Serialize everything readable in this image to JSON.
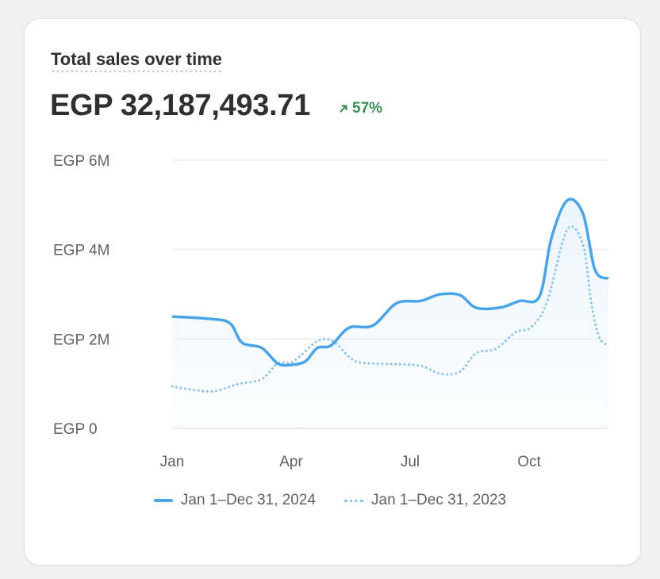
{
  "card": {
    "title": "Total sales over time",
    "total": "EGP 32,187,493.71",
    "change": "57%",
    "change_icon": "arrow-up-right-icon"
  },
  "chart_data": {
    "type": "line",
    "title": "",
    "xlabel": "",
    "ylabel": "",
    "ylim": [
      0,
      6000000
    ],
    "xlim": [
      0,
      11
    ],
    "y_ticks": [
      {
        "value": 0,
        "label": "EGP 0"
      },
      {
        "value": 2000000,
        "label": "EGP 2M"
      },
      {
        "value": 4000000,
        "label": "EGP 4M"
      },
      {
        "value": 6000000,
        "label": "EGP 6M"
      }
    ],
    "x_ticks": [
      {
        "value": 0,
        "label": "Jan"
      },
      {
        "value": 3,
        "label": "Apr"
      },
      {
        "value": 6,
        "label": "Jul"
      },
      {
        "value": 9,
        "label": "Oct"
      }
    ],
    "grid": true,
    "legend_position": "bottom",
    "colors": {
      "current": "#4aa5e8",
      "previous": "#8cc3ea",
      "fill": "#eaf4fc"
    },
    "series": [
      {
        "name": "Jan 1–Dec 31, 2024",
        "style": "solid",
        "points": [
          [
            0,
            2.5
          ],
          [
            0.96,
            2.45
          ],
          [
            1.46,
            2.35
          ],
          [
            1.76,
            1.92
          ],
          [
            2.26,
            1.8
          ],
          [
            2.66,
            1.45
          ],
          [
            3,
            1.42
          ],
          [
            3.36,
            1.5
          ],
          [
            3.66,
            1.8
          ],
          [
            4,
            1.85
          ],
          [
            4.46,
            2.25
          ],
          [
            5.06,
            2.3
          ],
          [
            5.66,
            2.8
          ],
          [
            6.26,
            2.85
          ],
          [
            6.76,
            3.0
          ],
          [
            7.26,
            2.98
          ],
          [
            7.66,
            2.7
          ],
          [
            8.26,
            2.7
          ],
          [
            8.76,
            2.85
          ],
          [
            9.26,
            2.95
          ],
          [
            9.56,
            4.25
          ],
          [
            9.96,
            5.1
          ],
          [
            10.36,
            4.8
          ],
          [
            10.66,
            3.55
          ],
          [
            11,
            3.35
          ]
        ]
      },
      {
        "name": "Jan 1–Dec 31, 2023",
        "style": "dotted",
        "points": [
          [
            0,
            0.94
          ],
          [
            0.46,
            0.87
          ],
          [
            1.06,
            0.83
          ],
          [
            1.66,
            0.99
          ],
          [
            2.26,
            1.1
          ],
          [
            2.66,
            1.45
          ],
          [
            3.06,
            1.5
          ],
          [
            3.66,
            1.95
          ],
          [
            4.06,
            1.95
          ],
          [
            4.46,
            1.6
          ],
          [
            4.76,
            1.47
          ],
          [
            5.46,
            1.44
          ],
          [
            6.26,
            1.4
          ],
          [
            6.76,
            1.22
          ],
          [
            7.26,
            1.27
          ],
          [
            7.66,
            1.68
          ],
          [
            8.16,
            1.78
          ],
          [
            8.66,
            2.15
          ],
          [
            9.06,
            2.27
          ],
          [
            9.46,
            2.85
          ],
          [
            9.96,
            4.45
          ],
          [
            10.36,
            4.1
          ],
          [
            10.56,
            2.85
          ],
          [
            10.76,
            2.05
          ],
          [
            11,
            1.85
          ]
        ]
      }
    ],
    "y_unit_of_points": "millions EGP; x in months from Jan"
  }
}
